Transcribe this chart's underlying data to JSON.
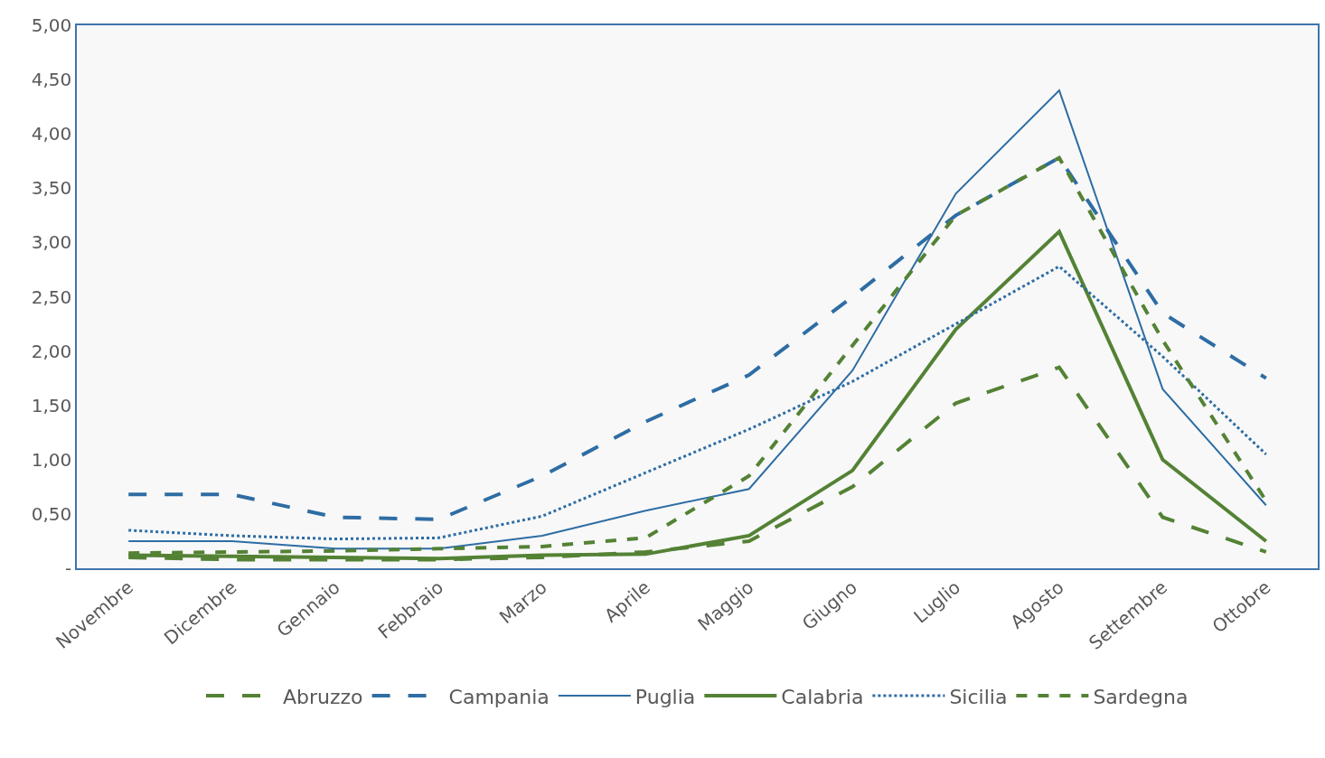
{
  "chart_data": {
    "type": "line",
    "categories": [
      "Novembre",
      "Dicembre",
      "Gennaio",
      "Febbraio",
      "Marzo",
      "Aprile",
      "Maggio",
      "Giugno",
      "Luglio",
      "Agosto",
      "Settembre",
      "Ottobre"
    ],
    "series": [
      {
        "name": "Abruzzo",
        "color": "#548235",
        "line_style": "dashed",
        "values": [
          0.1,
          0.08,
          0.08,
          0.08,
          0.1,
          0.15,
          0.25,
          0.75,
          1.52,
          1.85,
          0.47,
          0.15
        ]
      },
      {
        "name": "Campania",
        "color": "#2e6da4",
        "line_style": "dashed",
        "values": [
          0.68,
          0.68,
          0.47,
          0.45,
          0.85,
          1.35,
          1.78,
          2.5,
          3.25,
          3.78,
          2.35,
          1.75
        ]
      },
      {
        "name": "Puglia",
        "color": "#2e6da4",
        "line_style": "solid",
        "values": [
          0.25,
          0.25,
          0.18,
          0.18,
          0.3,
          0.53,
          0.73,
          1.82,
          3.45,
          4.4,
          1.65,
          0.58
        ]
      },
      {
        "name": "Calabria",
        "color": "#548235",
        "line_style": "solid",
        "values": [
          0.12,
          0.11,
          0.1,
          0.09,
          0.12,
          0.13,
          0.3,
          0.9,
          2.2,
          3.1,
          1.0,
          0.25
        ]
      },
      {
        "name": "Sicilia",
        "color": "#2e6da4",
        "line_style": "dotted",
        "values": [
          0.35,
          0.3,
          0.27,
          0.28,
          0.48,
          0.88,
          1.28,
          1.72,
          2.25,
          2.78,
          1.95,
          1.05
        ]
      },
      {
        "name": "Sardegna",
        "color": "#548235",
        "line_style": "dashed",
        "values": [
          0.14,
          0.15,
          0.16,
          0.18,
          0.2,
          0.28,
          0.85,
          2.05,
          3.25,
          3.78,
          2.1,
          0.62
        ]
      }
    ],
    "ylim": [
      0,
      5
    ],
    "yticks": [
      {
        "value": 0,
        "label": "-"
      },
      {
        "value": 0.5,
        "label": "0,50"
      },
      {
        "value": 1,
        "label": "1,00"
      },
      {
        "value": 1.5,
        "label": "1,50"
      },
      {
        "value": 2,
        "label": "2,00"
      },
      {
        "value": 2.5,
        "label": "2,50"
      },
      {
        "value": 3,
        "label": "3,00"
      },
      {
        "value": 3.5,
        "label": "3,50"
      },
      {
        "value": 4,
        "label": "4,00"
      },
      {
        "value": 4.5,
        "label": "4,50"
      },
      {
        "value": 5,
        "label": "5,00"
      }
    ],
    "grid": false,
    "legend": "bottom",
    "marker": "none"
  }
}
